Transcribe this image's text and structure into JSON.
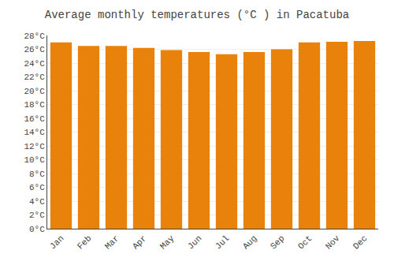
{
  "chart_data": {
    "type": "bar",
    "title": "Average monthly temperatures (°C ) in Pacatuba",
    "categories": [
      "Jan",
      "Feb",
      "Mar",
      "Apr",
      "May",
      "Jun",
      "Jul",
      "Aug",
      "Sep",
      "Oct",
      "Nov",
      "Dec"
    ],
    "values": [
      27.0,
      26.5,
      26.5,
      26.2,
      25.9,
      25.6,
      25.3,
      25.6,
      26.0,
      27.0,
      27.1,
      27.2
    ],
    "color": "#E8820A",
    "ylim": [
      0,
      28
    ],
    "yticks": [
      {
        "value": 0,
        "label": "0°C"
      },
      {
        "value": 2,
        "label": "2°C"
      },
      {
        "value": 4,
        "label": "4°C"
      },
      {
        "value": 6,
        "label": "6°C"
      },
      {
        "value": 8,
        "label": "8°C"
      },
      {
        "value": 10,
        "label": "10°C"
      },
      {
        "value": 12,
        "label": "12°C"
      },
      {
        "value": 14,
        "label": "14°C"
      },
      {
        "value": 16,
        "label": "16°C"
      },
      {
        "value": 18,
        "label": "18°C"
      },
      {
        "value": 20,
        "label": "20°C"
      },
      {
        "value": 22,
        "label": "22°C"
      },
      {
        "value": 24,
        "label": "24°C"
      },
      {
        "value": 26,
        "label": "26°C"
      },
      {
        "value": 28,
        "label": "28°C"
      }
    ],
    "grid": true
  }
}
